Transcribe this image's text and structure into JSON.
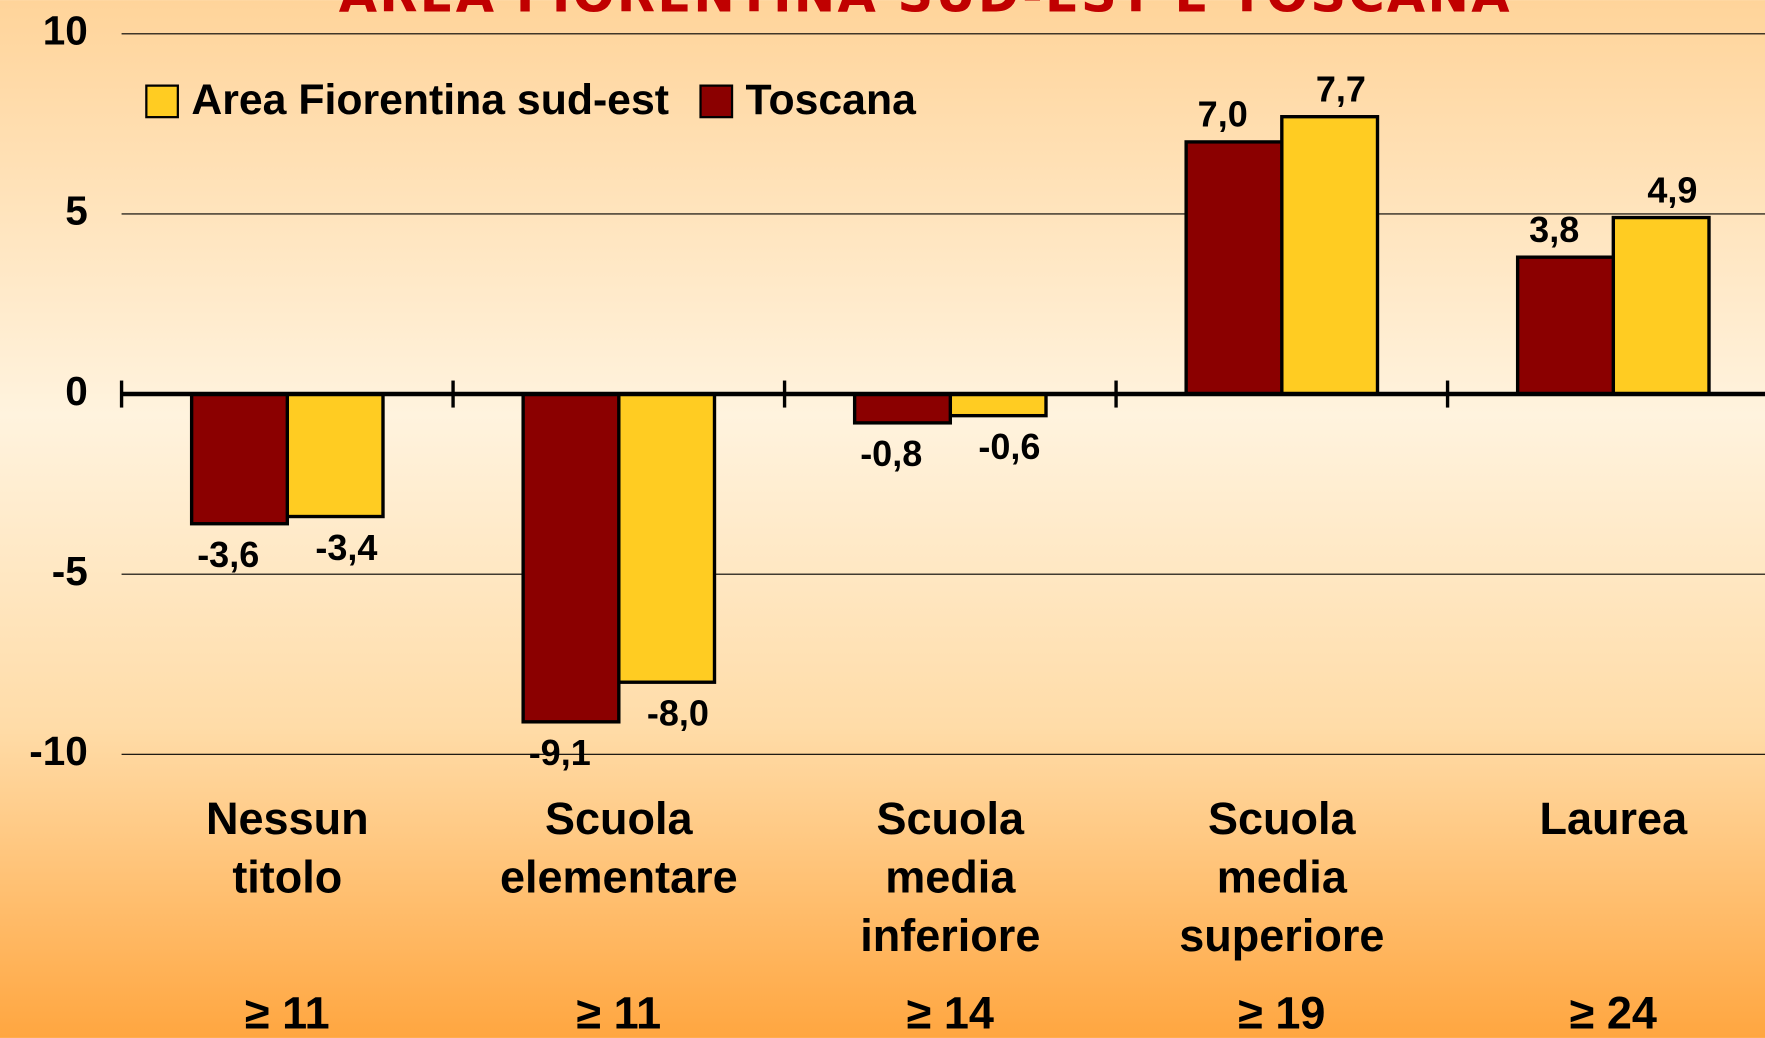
{
  "chart_data": {
    "type": "bar",
    "title": "AREA FIORENTINA SUD-EST E TOSCANA",
    "categories": [
      "Nessun titolo",
      "Scuola elementare",
      "Scuola media inferiore",
      "Scuola media superiore",
      "Laurea"
    ],
    "category_notes": [
      "≥ 11",
      "≥ 11",
      "≥ 14",
      "≥ 19",
      "≥ 24"
    ],
    "series": [
      {
        "name": "Area Fiorentina sud-est",
        "color": "#ffcc22",
        "values": [
          -3.4,
          -8.0,
          -0.6,
          7.7,
          4.9
        ],
        "value_labels": [
          "-3,4",
          "-8,0",
          "-0,6",
          "7,7",
          "4,9"
        ]
      },
      {
        "name": "Toscana",
        "color": "#8b0000",
        "values": [
          -3.6,
          -9.1,
          -0.8,
          7.0,
          3.8
        ],
        "value_labels": [
          "-3,6",
          "-9,1",
          "-0,8",
          "7,0",
          "3,8"
        ]
      }
    ],
    "ylim": [
      -10,
      10
    ],
    "yticks": [
      -10,
      -5,
      0,
      5,
      10
    ],
    "grid": true,
    "legend": "top-left"
  }
}
